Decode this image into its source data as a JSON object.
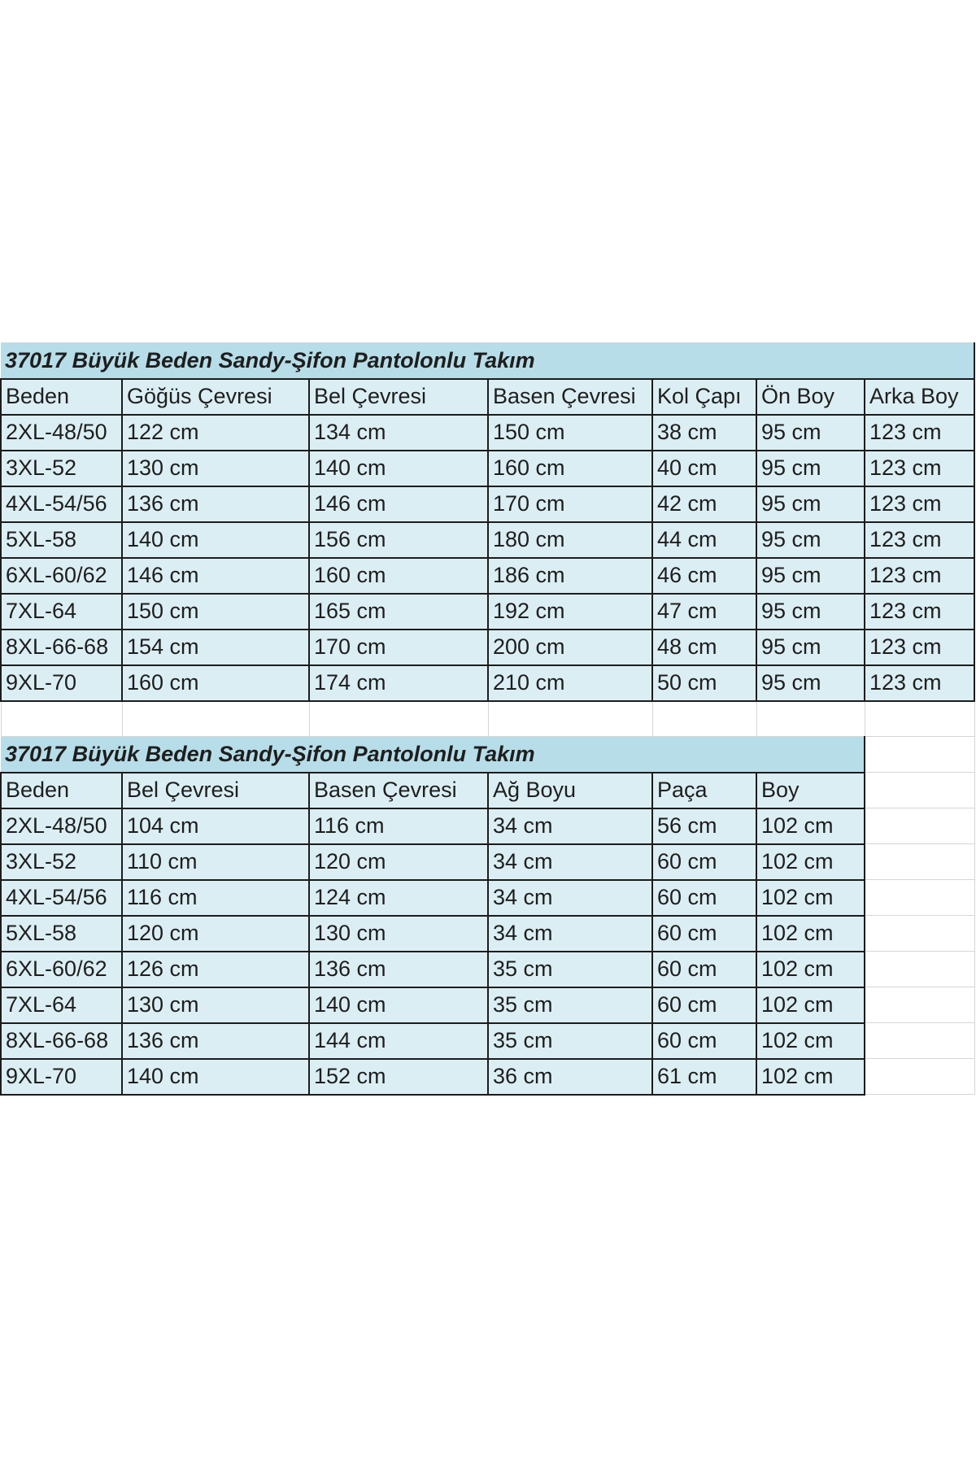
{
  "tables": [
    {
      "title": "37017 Büyük Beden Sandy-Şifon Pantolonlu Takım",
      "headers": [
        "Beden",
        "Göğüs Çevresi",
        "Bel Çevresi",
        "Basen Çevresi",
        "Kol Çapı",
        "Ön Boy",
        "Arka Boy"
      ],
      "rows": [
        [
          "2XL-48/50",
          "122 cm",
          "134 cm",
          "150 cm",
          "38 cm",
          "95 cm",
          "123 cm"
        ],
        [
          "3XL-52",
          "130 cm",
          "140 cm",
          "160 cm",
          "40 cm",
          "95 cm",
          "123 cm"
        ],
        [
          "4XL-54/56",
          "136 cm",
          "146 cm",
          "170 cm",
          "42 cm",
          "95 cm",
          "123 cm"
        ],
        [
          "5XL-58",
          "140 cm",
          "156 cm",
          "180 cm",
          "44 cm",
          "95 cm",
          "123 cm"
        ],
        [
          "6XL-60/62",
          "146 cm",
          "160 cm",
          "186 cm",
          "46 cm",
          "95 cm",
          "123 cm"
        ],
        [
          "7XL-64",
          "150 cm",
          "165 cm",
          "192 cm",
          "47 cm",
          "95 cm",
          "123 cm"
        ],
        [
          "8XL-66-68",
          "154 cm",
          "170 cm",
          "200 cm",
          "48 cm",
          "95 cm",
          "123 cm"
        ],
        [
          "9XL-70",
          "160 cm",
          "174 cm",
          "210 cm",
          "50 cm",
          "95 cm",
          "123 cm"
        ]
      ]
    },
    {
      "title": "37017 Büyük Beden Sandy-Şifon Pantolonlu Takım",
      "headers": [
        "Beden",
        "Bel Çevresi",
        "Basen Çevresi",
        "Ağ Boyu",
        "Paça",
        "Boy"
      ],
      "rows": [
        [
          "2XL-48/50",
          "104 cm",
          "116 cm",
          "34 cm",
          "56 cm",
          "102 cm"
        ],
        [
          "3XL-52",
          "110 cm",
          "120 cm",
          "34 cm",
          "60 cm",
          "102 cm"
        ],
        [
          "4XL-54/56",
          "116 cm",
          "124 cm",
          "34 cm",
          "60 cm",
          "102 cm"
        ],
        [
          "5XL-58",
          "120 cm",
          "130 cm",
          "34 cm",
          "60 cm",
          "102 cm"
        ],
        [
          "6XL-60/62",
          "126 cm",
          "136 cm",
          "35 cm",
          "60 cm",
          "102 cm"
        ],
        [
          "7XL-64",
          "130 cm",
          "140 cm",
          "35 cm",
          "60 cm",
          "102 cm"
        ],
        [
          "8XL-66-68",
          "136 cm",
          "144 cm",
          "35 cm",
          "60 cm",
          "102 cm"
        ],
        [
          "9XL-70",
          "140 cm",
          "152 cm",
          "36 cm",
          "61 cm",
          "102 cm"
        ]
      ]
    }
  ],
  "colors": {
    "title_bg": "#b7dde8",
    "cell_bg": "#dbeef4",
    "border": "#1c1c1c"
  }
}
